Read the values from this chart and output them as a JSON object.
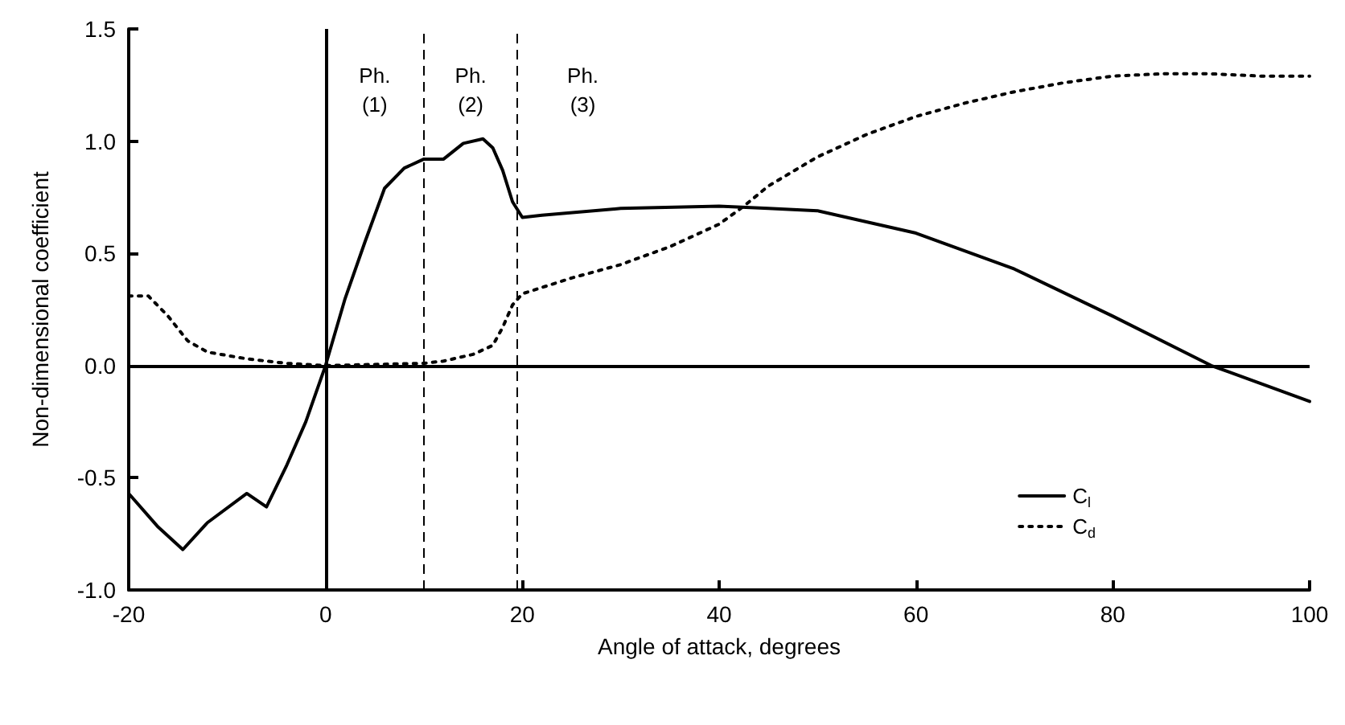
{
  "chart_data": {
    "type": "line",
    "xlabel": "Angle of attack, degrees",
    "ylabel": "Non-dimensional coefficient",
    "xlim": [
      -20,
      100
    ],
    "xticks": [
      -20,
      0,
      20,
      40,
      60,
      80,
      100
    ],
    "ylim": [
      -1,
      1.5
    ],
    "yticks": [
      {
        "value": -1,
        "label": "-1.0"
      },
      {
        "value": -0.5,
        "label": "-0.5"
      },
      {
        "value": 0,
        "label": "0.0"
      },
      {
        "value": 0.5,
        "label": "0.5"
      },
      {
        "value": 1,
        "label": "1.0"
      },
      {
        "value": 1.5,
        "label": "1.5"
      }
    ],
    "grid": false,
    "legend": "bottom right",
    "marker": "none",
    "series": [
      {
        "name": "C$_{l}$",
        "color": "#000000",
        "line_style": "solid",
        "x": [
          -20,
          -17,
          -14.5,
          -12,
          -8,
          -6,
          -4,
          -2,
          0,
          2,
          4,
          6,
          8,
          10,
          12,
          14,
          16,
          17,
          18,
          19,
          20,
          22,
          30,
          40,
          45,
          50,
          60,
          70,
          80,
          90,
          100
        ],
        "values": [
          -0.57,
          -0.72,
          -0.82,
          -0.7,
          -0.57,
          -0.63,
          -0.45,
          -0.25,
          0,
          0.3,
          0.55,
          0.79,
          0.88,
          0.92,
          0.92,
          0.99,
          1.01,
          0.97,
          0.87,
          0.73,
          0.66,
          0.67,
          0.7,
          0.71,
          0.7,
          0.69,
          0.59,
          0.43,
          0.22,
          0,
          -0.16
        ]
      },
      {
        "name": "C$_{d}$",
        "color": "#000000",
        "line_style": "dotted",
        "x": [
          -20,
          -18,
          -16,
          -14,
          -12,
          -8,
          -4,
          0,
          10,
          12,
          15,
          17,
          18,
          19,
          20,
          25,
          30,
          35,
          40,
          42.5,
          45,
          50,
          55,
          60,
          65,
          70,
          75,
          80,
          85,
          90,
          95,
          100
        ],
        "values": [
          0.31,
          0.31,
          0.22,
          0.11,
          0.06,
          0.03,
          0.01,
          0,
          0.01,
          0.02,
          0.05,
          0.09,
          0.17,
          0.27,
          0.32,
          0.39,
          0.45,
          0.53,
          0.63,
          0.71,
          0.8,
          0.93,
          1.03,
          1.11,
          1.17,
          1.22,
          1.26,
          1.29,
          1.3,
          1.3,
          1.29,
          1.29
        ]
      }
    ],
    "ref_lines": [
      {
        "axis": "x",
        "value": 0,
        "line_style": "solid"
      },
      {
        "axis": "y",
        "value": 0,
        "line_style": "solid"
      },
      {
        "axis": "x",
        "value": 10,
        "line_style": "dashed"
      },
      {
        "axis": "x",
        "value": 19.5,
        "line_style": "dashed"
      }
    ],
    "annotations": [
      "Ph. (1)",
      "Ph. (2)",
      "Ph. (3)"
    ]
  }
}
